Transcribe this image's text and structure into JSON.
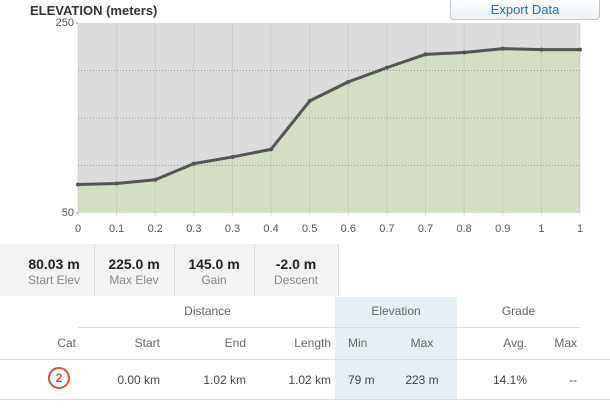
{
  "header": {
    "title": "ELEVATION (meters)",
    "button": "Export Data"
  },
  "chart_data": {
    "type": "area",
    "categories": [
      "0",
      "0.1",
      "0.2",
      "0.3",
      "0.3",
      "0.4",
      "0.5",
      "0.6",
      "0.7",
      "0.7",
      "0.8",
      "0.9",
      "1",
      "1"
    ],
    "values": [
      80,
      81,
      85,
      102,
      109,
      117,
      168,
      188,
      203,
      217,
      219,
      223,
      222,
      222
    ],
    "ylim": [
      50,
      250
    ],
    "yticks": [
      50,
      250
    ],
    "ygrid": [
      100,
      150,
      200
    ],
    "color": "#555555",
    "fill": "#d3dec5",
    "background": "#dcdcdc"
  },
  "stats": [
    {
      "value": "80.03 m",
      "label": "Start Elev"
    },
    {
      "value": "225.0 m",
      "label": "Max Elev"
    },
    {
      "value": "145.0 m",
      "label": "Gain"
    },
    {
      "value": "-2.0 m",
      "label": "Descent"
    }
  ],
  "table": {
    "groups": [
      "Distance",
      "Elevation",
      "Grade"
    ],
    "columns": [
      "Cat",
      "Start",
      "End",
      "Length",
      "Min",
      "Max",
      "Avg.",
      "Max"
    ],
    "rows": [
      [
        "2",
        "0.00 km",
        "1.02 km",
        "1.02 km",
        "79 m",
        "223 m",
        "14.1%",
        "--"
      ]
    ]
  }
}
